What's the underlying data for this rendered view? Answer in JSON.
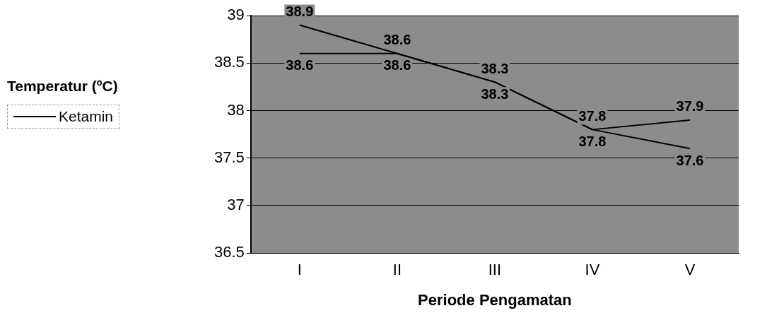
{
  "chart_data": {
    "type": "line",
    "legend_title": "Temperatur (ºC)",
    "xlabel": "Periode Pengamatan",
    "categories": [
      "I",
      "II",
      "III",
      "IV",
      "V"
    ],
    "series": [
      {
        "name": "Ketamin",
        "color": "#000000",
        "values": [
          38.9,
          38.6,
          38.3,
          37.8,
          37.6
        ]
      },
      {
        "color": "#000000",
        "values": [
          38.6,
          38.6,
          38.3,
          37.8,
          37.9
        ]
      }
    ],
    "ylim": [
      36.5,
      39
    ],
    "yticks": [
      36.5,
      37,
      37.5,
      38,
      38.5,
      39
    ],
    "grid": "y",
    "legend": "left",
    "marker": "none",
    "line_style": "solid",
    "data_labels": true
  }
}
